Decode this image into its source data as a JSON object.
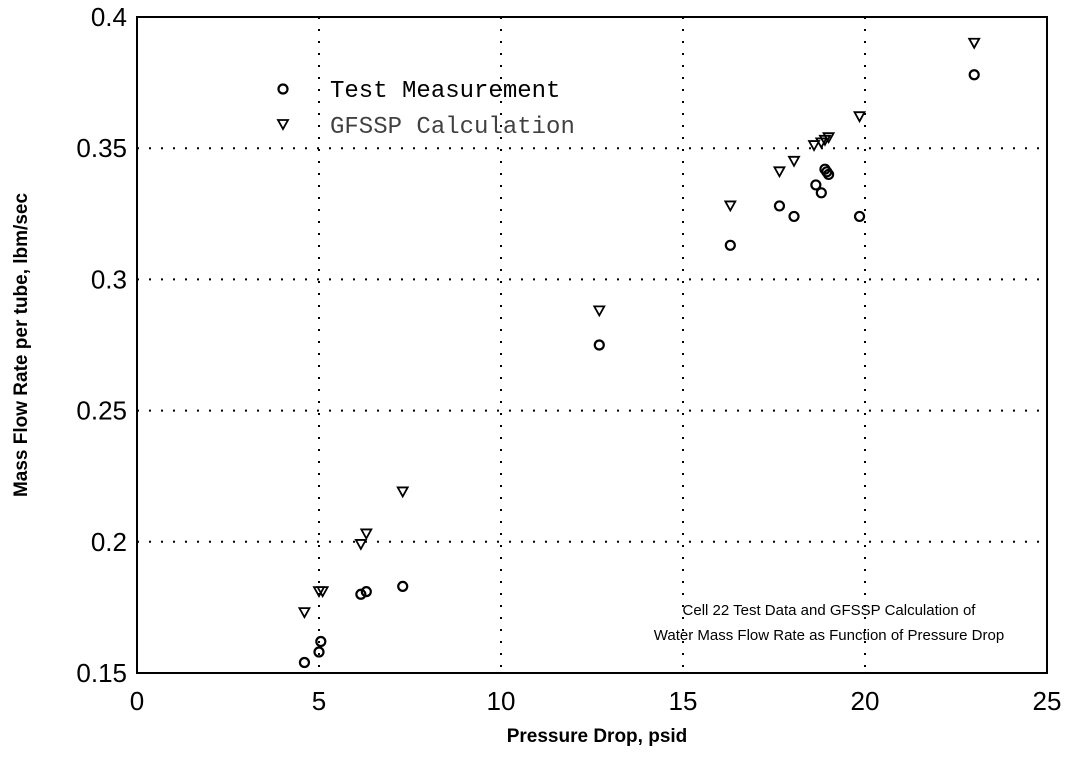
{
  "chart_data": {
    "type": "scatter",
    "title": "",
    "xlabel": "Pressure Drop, psid",
    "ylabel": "Mass Flow Rate per tube, lbm/sec",
    "xlim": [
      0,
      25
    ],
    "ylim": [
      0.15,
      0.4
    ],
    "x_ticks": [
      "0",
      "5",
      "10",
      "15",
      "20",
      "25"
    ],
    "y_ticks": [
      "0.15",
      "0.2",
      "0.25",
      "0.3",
      "0.35",
      "0.4"
    ],
    "grid": true,
    "legend_position": "top-left",
    "annotation": [
      "Cell 22 Test Data and GFSSP Calculation of",
      "Water Mass Flow Rate as Function of Pressure Drop"
    ],
    "series": [
      {
        "name": "Test Measurement",
        "marker": "circle",
        "x": [
          4.6,
          5.0,
          5.05,
          6.15,
          6.3,
          7.3,
          12.7,
          16.3,
          17.65,
          18.05,
          18.65,
          18.8,
          18.9,
          18.95,
          19.0,
          19.85,
          23.0
        ],
        "y": [
          0.154,
          0.158,
          0.162,
          0.18,
          0.181,
          0.183,
          0.275,
          0.313,
          0.328,
          0.324,
          0.336,
          0.333,
          0.342,
          0.341,
          0.34,
          0.324,
          0.378
        ]
      },
      {
        "name": "GFSSP Calculation",
        "marker": "triangle-down",
        "x": [
          4.6,
          5.0,
          5.1,
          6.15,
          6.3,
          7.3,
          12.7,
          16.3,
          17.65,
          18.05,
          18.6,
          18.8,
          18.9,
          19.0,
          19.85,
          23.0
        ],
        "y": [
          0.173,
          0.181,
          0.181,
          0.199,
          0.203,
          0.219,
          0.288,
          0.328,
          0.341,
          0.345,
          0.351,
          0.352,
          0.353,
          0.354,
          0.362,
          0.39
        ]
      }
    ]
  }
}
